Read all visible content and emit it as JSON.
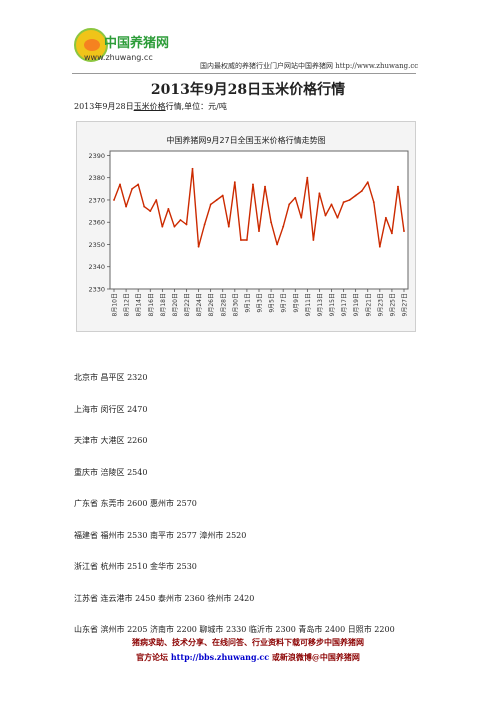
{
  "header": {
    "logo_name": "中国养猪网",
    "logo_url": "www.zhuwang.cc",
    "tagline": "国内最权威的养猪行业门户网站中国养猪网 http://www.zhuwang.cc"
  },
  "title": "2013年9月28日玉米价格行情",
  "subtitle": {
    "prefix": "2013年9月28日",
    "link": "玉米价格",
    "suffix": "行情,单位：元/吨"
  },
  "colors": {
    "line": "#cc2a00",
    "plot_bg": "#ffffff",
    "frame": "#666666"
  },
  "chart_data": {
    "type": "line",
    "title": "中国养猪网9月27日全国玉米价格行情走势图",
    "ylim": [
      2330,
      2392
    ],
    "y_ticks": [
      2330,
      2340,
      2350,
      2360,
      2370,
      2380,
      2390
    ],
    "x_tick_labels": [
      "8月10日",
      "8月12日",
      "8月14日",
      "8月16日",
      "8月18日",
      "8月20日",
      "8月22日",
      "8月24日",
      "8月26日",
      "8月28日",
      "8月30日",
      "9月1日",
      "9月3日",
      "9月5日",
      "9月7日",
      "9月9日",
      "9月11日",
      "9月13日",
      "9月15日",
      "9月17日",
      "9月19日",
      "9月21日",
      "9月23日",
      "9月25日",
      "9月27日"
    ],
    "series": [
      {
        "values": [
          2370,
          2377,
          2367,
          2375,
          2377,
          2367,
          2365,
          2370,
          2358,
          2366,
          2358,
          2361,
          2359,
          2384,
          2349,
          2359,
          2368,
          2370,
          2372,
          2358,
          2378,
          2352,
          2352,
          2377,
          2356,
          2376,
          2360,
          2350,
          2358,
          2368,
          2371,
          2362,
          2380,
          2352,
          2373,
          2363,
          2368,
          2362,
          2369,
          2370,
          2372,
          2374,
          2378,
          2369,
          2349,
          2362,
          2355,
          2376,
          2356
        ]
      }
    ]
  },
  "regions": [
    "北京市 昌平区 2320",
    "上海市 闵行区 2470",
    "天津市 大港区 2260",
    "重庆市 涪陵区 2540",
    "广东省 东莞市 2600 惠州市 2570",
    "福建省 福州市 2530 南平市 2577 漳州市 2520",
    "浙江省 杭州市 2510 金华市 2530",
    "江苏省 连云港市 2450 泰州市 2360 徐州市 2420",
    "山东省 滨州市 2205 济南市 2200 聊城市 2330 临沂市 2300 青岛市 2400 日照市 2200"
  ],
  "footer": {
    "line1": "猪病求助、技术分享、在线问答、行业资料下载可移步中国养猪网",
    "line2_prefix": "官方论坛 ",
    "line2_link": "http://bbs.zhuwang.cc",
    "line2_suffix": " 或新浪微博@中国养猪网"
  }
}
